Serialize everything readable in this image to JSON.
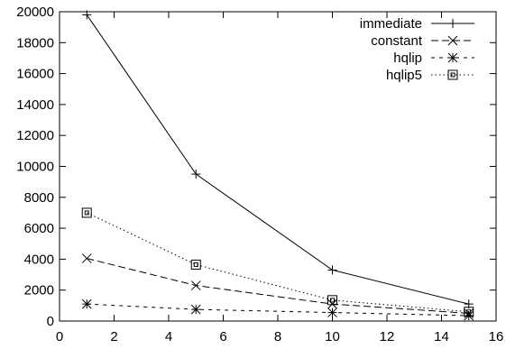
{
  "chart_data": {
    "type": "line",
    "title": "",
    "xlabel": "",
    "ylabel": "",
    "xlim": [
      0,
      16
    ],
    "ylim": [
      0,
      20000
    ],
    "x_ticks": [
      0,
      2,
      4,
      6,
      8,
      10,
      12,
      14,
      16
    ],
    "y_ticks": [
      0,
      2000,
      4000,
      6000,
      8000,
      10000,
      12000,
      14000,
      16000,
      18000,
      20000
    ],
    "x_tick_labels": [
      "0",
      "2",
      "4",
      "6",
      "8",
      "10",
      "12",
      "14",
      "16"
    ],
    "y_tick_labels": [
      "0",
      "2000",
      "4000",
      "6000",
      "8000",
      "10000",
      "12000",
      "14000",
      "16000",
      "18000",
      "20000"
    ],
    "grid": false,
    "legend_position": "top-right",
    "series": [
      {
        "name": "immediate",
        "x": [
          1,
          5,
          10,
          15
        ],
        "y": [
          19800,
          9500,
          3300,
          1100
        ],
        "marker": "plus",
        "line_style": "solid",
        "color": "#000000"
      },
      {
        "name": "constant",
        "x": [
          1,
          5,
          10,
          15
        ],
        "y": [
          4050,
          2300,
          1100,
          500
        ],
        "marker": "cross",
        "line_style": "dashed",
        "color": "#000000"
      },
      {
        "name": "hqlip",
        "x": [
          1,
          5,
          10,
          15
        ],
        "y": [
          1100,
          750,
          550,
          350
        ],
        "marker": "star",
        "line_style": "short-dashed",
        "color": "#000000"
      },
      {
        "name": "hqlip5",
        "x": [
          1,
          5,
          10,
          15
        ],
        "y": [
          7000,
          3650,
          1350,
          600
        ],
        "marker": "square",
        "line_style": "dotted",
        "color": "#000000"
      }
    ]
  }
}
